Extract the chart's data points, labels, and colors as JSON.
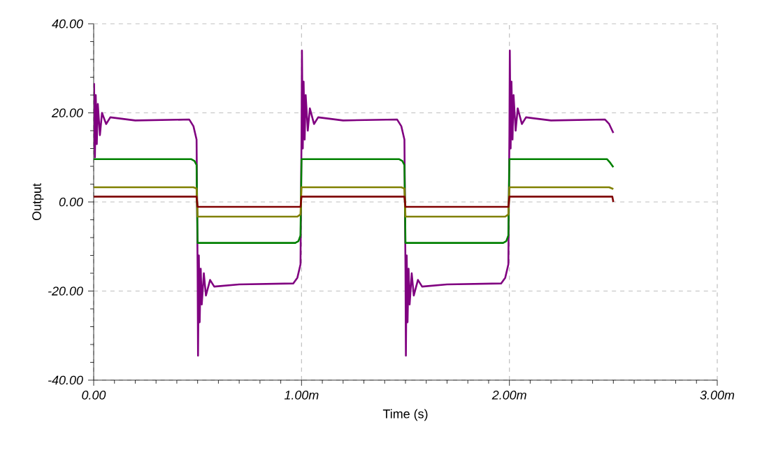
{
  "chart_data": {
    "type": "line",
    "xlabel": "Time (s)",
    "ylabel": "Output",
    "xlim": [
      0,
      3
    ],
    "ylim": [
      -40,
      40
    ],
    "xticks": [
      {
        "value": 0,
        "label": "0.00"
      },
      {
        "value": 1,
        "label": "1.00m"
      },
      {
        "value": 2,
        "label": "2.00m"
      },
      {
        "value": 3,
        "label": "3.00m"
      }
    ],
    "yticks": [
      {
        "value": -40,
        "label": "-40.00"
      },
      {
        "value": -20,
        "label": "-20.00"
      },
      {
        "value": 0,
        "label": "0.00"
      },
      {
        "value": 20,
        "label": "20.00"
      },
      {
        "value": 40,
        "label": "40.00"
      }
    ],
    "grid": true,
    "series": [
      {
        "color": "#800080",
        "x": [
          0,
          0.002,
          0.006,
          0.01,
          0.015,
          0.02,
          0.03,
          0.04,
          0.06,
          0.08,
          0.2,
          0.46,
          0.48,
          0.495,
          0.5,
          0.502,
          0.506,
          0.51,
          0.515,
          0.52,
          0.53,
          0.54,
          0.56,
          0.58,
          0.7,
          0.96,
          0.98,
          0.995,
          1,
          1.002,
          1.006,
          1.01,
          1.015,
          1.02,
          1.03,
          1.04,
          1.06,
          1.08,
          1.2,
          1.46,
          1.48,
          1.495,
          1.5,
          1.502,
          1.506,
          1.51,
          1.515,
          1.52,
          1.53,
          1.54,
          1.56,
          1.58,
          1.7,
          1.96,
          1.98,
          1.995,
          2,
          2.002,
          2.006,
          2.01,
          2.015,
          2.02,
          2.03,
          2.04,
          2.06,
          2.08,
          2.2,
          2.46,
          2.48,
          2.5
        ],
        "values": [
          12,
          26.5,
          10,
          24,
          13,
          22,
          15,
          20,
          17.5,
          19,
          18.3,
          18.5,
          17,
          14,
          -15,
          -34.5,
          -12,
          -27,
          -15,
          -23,
          -16,
          -21,
          -17.5,
          -19,
          -18.5,
          -18.3,
          -17,
          -14,
          15,
          34,
          12,
          27,
          14,
          24,
          16,
          21,
          17.5,
          19,
          18.3,
          18.5,
          17,
          14,
          -15,
          -34.5,
          -12,
          -27,
          -15,
          -23,
          -16,
          -21,
          -17.5,
          -19,
          -18.5,
          -18.3,
          -17,
          -14,
          15,
          34,
          12,
          27,
          14,
          24,
          16,
          21,
          17.5,
          19,
          18.3,
          18.5,
          17.5,
          15.5
        ]
      },
      {
        "color": "#008000",
        "x": [
          0,
          0.47,
          0.485,
          0.495,
          0.5,
          0.97,
          0.985,
          0.995,
          1,
          1.47,
          1.485,
          1.495,
          1.5,
          1.97,
          1.985,
          1.995,
          2,
          2.47,
          2.485,
          2.5
        ],
        "values": [
          9.6,
          9.6,
          9.2,
          8.3,
          -9.2,
          -9.2,
          -8.8,
          -7.5,
          9.6,
          9.6,
          9.2,
          8.3,
          -9.2,
          -9.2,
          -8.8,
          -7.5,
          9.6,
          9.6,
          8.8,
          7.8
        ]
      },
      {
        "color": "#808000",
        "x": [
          0,
          0.48,
          0.495,
          0.5,
          0.98,
          0.995,
          1,
          1.48,
          1.495,
          1.5,
          1.98,
          1.995,
          2,
          2.48,
          2.5
        ],
        "values": [
          3.3,
          3.3,
          3,
          -3.3,
          -3.3,
          -2.8,
          3.3,
          3.3,
          3,
          -3.3,
          -3.3,
          -2.8,
          3.3,
          3.3,
          2.9
        ]
      },
      {
        "color": "#800000",
        "x": [
          0,
          0.495,
          0.5,
          0.995,
          1,
          1.495,
          1.5,
          1.995,
          2,
          2.495,
          2.5
        ],
        "values": [
          1.2,
          1.2,
          -1.1,
          -1.1,
          1.2,
          1.2,
          -1.1,
          -1.1,
          1.2,
          1.2,
          0
        ]
      }
    ]
  }
}
